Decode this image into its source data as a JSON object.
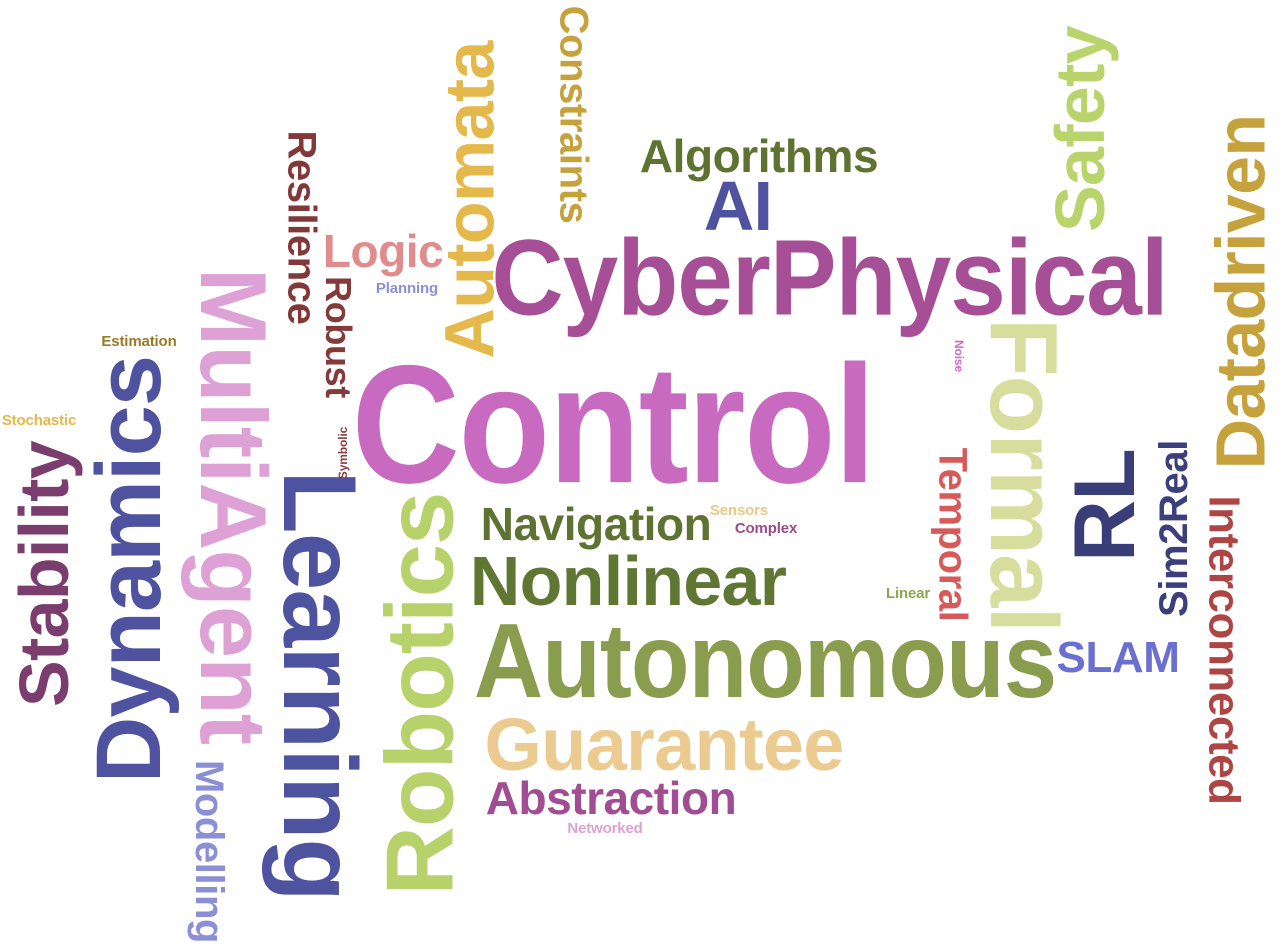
{
  "words": [
    {
      "key": "control",
      "text": "Control",
      "color": "#c96ac1"
    },
    {
      "key": "cyber",
      "text": "CyberPhysical",
      "color": "#a64f97"
    },
    {
      "key": "auton",
      "text": "Autonomous",
      "color": "#8a9d4e"
    },
    {
      "key": "formal",
      "text": "Formal",
      "color": "#d7de9d"
    },
    {
      "key": "robotics",
      "text": "Robotics",
      "color": "#b7d26b"
    },
    {
      "key": "learning",
      "text": "Learning",
      "color": "#4e53a0"
    },
    {
      "key": "dynamics",
      "text": "Dynamics",
      "color": "#4f539f"
    },
    {
      "key": "multi",
      "text": "MultiAgent",
      "color": "#dea1d6"
    },
    {
      "key": "automata",
      "text": "Automata",
      "color": "#e4b84a"
    },
    {
      "key": "nonlinear",
      "text": "Nonlinear",
      "color": "#607733"
    },
    {
      "key": "guarantee",
      "text": "Guarantee",
      "color": "#ebcb90"
    },
    {
      "key": "datadriven",
      "text": "Datadriven",
      "color": "#c5a23b"
    },
    {
      "key": "safety",
      "text": "Safety",
      "color": "#b8d46a"
    },
    {
      "key": "rl",
      "text": "RL",
      "color": "#393e78"
    },
    {
      "key": "stability",
      "text": "Stability",
      "color": "#7b3d6d"
    },
    {
      "key": "ai",
      "text": "AI",
      "color": "#4f539f"
    },
    {
      "key": "algorithms",
      "text": "Algorithms",
      "color": "#5e7232"
    },
    {
      "key": "constraints",
      "text": "Constraints",
      "color": "#c5a23b"
    },
    {
      "key": "resilience",
      "text": "Resilience",
      "color": "#823838"
    },
    {
      "key": "robust",
      "text": "Robust",
      "color": "#843a3a"
    },
    {
      "key": "logic",
      "text": "Logic",
      "color": "#e08c8c"
    },
    {
      "key": "planning",
      "text": "Planning",
      "color": "#8c8fd6"
    },
    {
      "key": "estimation",
      "text": "Estimation",
      "color": "#9a7a28"
    },
    {
      "key": "stochastic",
      "text": "Stochastic",
      "color": "#e4b84a"
    },
    {
      "key": "symbolic",
      "text": "Symbolic",
      "color": "#8a3d3d"
    },
    {
      "key": "navigation",
      "text": "Navigation",
      "color": "#5e7232"
    },
    {
      "key": "sensors",
      "text": "Sensors",
      "color": "#e8c983"
    },
    {
      "key": "complex",
      "text": "Complex",
      "color": "#9a4b8a"
    },
    {
      "key": "noise",
      "text": "Noise",
      "color": "#d069c4"
    },
    {
      "key": "temporal",
      "text": "Temporal",
      "color": "#d75a5a"
    },
    {
      "key": "linear",
      "text": "Linear",
      "color": "#8ea74e"
    },
    {
      "key": "sim2real",
      "text": "Sim2Real",
      "color": "#3b3f7c"
    },
    {
      "key": "intercon",
      "text": "Interconnected",
      "color": "#ad4545"
    },
    {
      "key": "slam",
      "text": "SLAM",
      "color": "#6b6fd0"
    },
    {
      "key": "abstraction",
      "text": "Abstraction",
      "color": "#a04d93"
    },
    {
      "key": "networked",
      "text": "Networked",
      "color": "#dea1d6"
    },
    {
      "key": "modelling",
      "text": "Modelling",
      "color": "#8c8fd6"
    }
  ]
}
